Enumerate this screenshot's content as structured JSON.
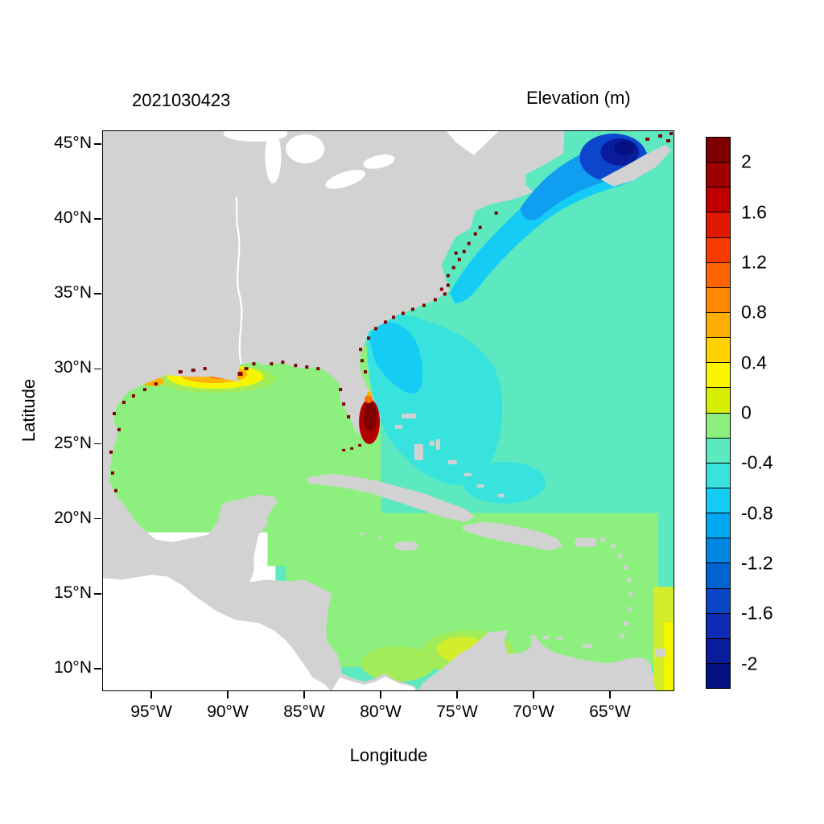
{
  "header": {
    "date_label": "2021030423",
    "title": "Elevation (m)"
  },
  "axes": {
    "x_label": "Longitude",
    "y_label": "Latitude",
    "x_ticks": [
      "95°W",
      "90°W",
      "85°W",
      "80°W",
      "75°W",
      "70°W",
      "65°W"
    ],
    "y_ticks": [
      "45°N",
      "40°N",
      "35°N",
      "30°N",
      "25°N",
      "20°N",
      "15°N",
      "10°N"
    ]
  },
  "colorbar": {
    "tick_labels": [
      "2",
      "1.6",
      "1.2",
      "0.8",
      "0.4",
      "0",
      "-0.4",
      "-0.8",
      "-1.2",
      "-1.6",
      "-2"
    ],
    "tick_values": [
      2,
      1.6,
      1.2,
      0.8,
      0.4,
      0,
      -0.4,
      -0.8,
      -1.2,
      -1.6,
      -2
    ],
    "value_range": [
      -2.2,
      2.2
    ],
    "n_bins": 22,
    "colors_top_to_bottom": [
      "#7f0000",
      "#9e0000",
      "#c00000",
      "#e11800",
      "#fb3c00",
      "#ff6400",
      "#ff8a00",
      "#ffae00",
      "#ffd200",
      "#fbf500",
      "#d8ee00",
      "#8df07e",
      "#5ce9c0",
      "#38e3de",
      "#14ccf4",
      "#00a8f2",
      "#0086e2",
      "#0064d0",
      "#0a46c4",
      "#0c2cb4",
      "#081c9c",
      "#021080"
    ]
  },
  "map_colors": {
    "land": "#d2d2d2",
    "no_data": "#ffffff",
    "green": "#8df07e",
    "aqua": "#5ce9c0",
    "cyan": "#38e3de",
    "cyan2": "#14ccf4",
    "blue": "#0f9ef0",
    "deep_blue": "#0c46cc",
    "navy": "#081c9c",
    "navy2": "#021080",
    "dark_red": "#7f0000",
    "red": "#c80000",
    "orange": "#ff7000",
    "amber": "#ffb400",
    "yellow": "#f6f400",
    "yellow_green": "#d2ee2a",
    "lime": "#a2ec5a"
  },
  "chart_data": {
    "type": "heatmap",
    "title": "Elevation (m)",
    "timestamp_label": "2021030423",
    "xlabel": "Longitude",
    "ylabel": "Latitude",
    "x_ticks": [
      "95°W",
      "90°W",
      "85°W",
      "80°W",
      "75°W",
      "70°W",
      "65°W"
    ],
    "y_ticks": [
      "45°N",
      "40°N",
      "35°N",
      "30°N",
      "25°N",
      "20°N",
      "15°N",
      "10°N"
    ],
    "xlim_deg_west": [
      98.2,
      60.8
    ],
    "ylim_deg_north": [
      8.5,
      45.9
    ],
    "colorbar": {
      "label": "Elevation (m)",
      "ticks": [
        2,
        1.6,
        1.2,
        0.8,
        0.4,
        0,
        -0.4,
        -0.8,
        -1.2,
        -1.6,
        -2
      ],
      "range": [
        -2.2,
        2.2
      ],
      "bin_width": 0.2
    },
    "legend_position": "right",
    "grid_lines": false,
    "regions": [
      {
        "name": "Gulf of Mexico (open water)",
        "approx_elevation_m": -0.1
      },
      {
        "name": "Caribbean Sea (open water)",
        "approx_elevation_m": -0.1
      },
      {
        "name": "Open Atlantic (Sargasso / offshore)",
        "approx_elevation_m": -0.3
      },
      {
        "name": "Florida east coast / Bahamas shelf",
        "approx_elevation_m": -0.6
      },
      {
        "name": "Florida-Georgia nearshore strip",
        "approx_elevation_m": -0.9
      },
      {
        "name": "Mid-Atlantic Bight",
        "approx_elevation_m": -0.8
      },
      {
        "name": "Gulf of Maine",
        "approx_elevation_m": -1.5
      },
      {
        "name": "Bay of Fundy core",
        "approx_elevation_m": -2.1
      },
      {
        "name": "Louisiana-Texas shelf patch",
        "approx_elevation_m": 0.8
      },
      {
        "name": "South Florida / Everglades coastal blob",
        "approx_elevation_m": 2.1
      },
      {
        "name": "Northern Gulf coastal fringe specks",
        "approx_elevation_m": 2.0
      },
      {
        "name": "Colombia / Panama nearshore patch",
        "approx_elevation_m": 0.2
      },
      {
        "name": "Southeast corner near 61°W, 9-14°N",
        "approx_elevation_m": 0.4
      },
      {
        "name": "Land",
        "approx_elevation_m": null
      },
      {
        "name": "Pacific side (outside model domain)",
        "approx_elevation_m": null
      }
    ],
    "grid": {
      "lon_deg_west": [
        95,
        90,
        85,
        80,
        75,
        70,
        65
      ],
      "lat_deg_north": [
        45,
        40,
        35,
        30,
        25,
        20,
        15,
        10
      ],
      "elevation_m": [
        [
          null,
          null,
          null,
          null,
          null,
          null,
          -1.8
        ],
        [
          null,
          null,
          null,
          null,
          null,
          -1.0,
          -0.5
        ],
        [
          null,
          null,
          null,
          null,
          -0.6,
          -0.4,
          -0.4
        ],
        [
          0.5,
          0.6,
          -0.1,
          -0.8,
          -0.4,
          -0.4,
          -0.4
        ],
        [
          -0.1,
          -0.1,
          -0.1,
          1.9,
          -0.4,
          -0.35,
          -0.35
        ],
        [
          -0.1,
          null,
          -0.1,
          -0.15,
          -0.3,
          -0.25,
          -0.3
        ],
        [
          null,
          null,
          -0.05,
          0.1,
          0.05,
          -0.2,
          -0.2
        ],
        [
          null,
          null,
          null,
          0.3,
          null,
          null,
          0.4
        ]
      ],
      "note": "null = land or outside model domain; values estimated from fill colors"
    }
  }
}
